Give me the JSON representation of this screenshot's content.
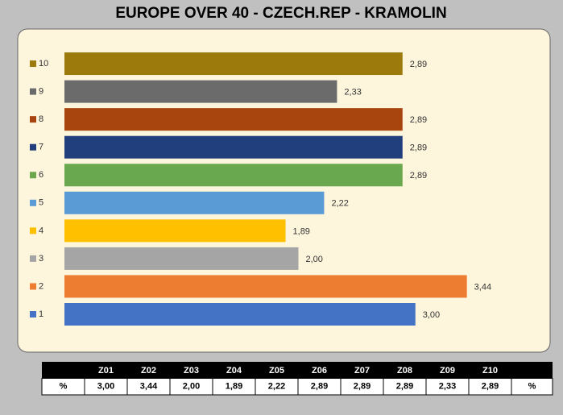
{
  "chart_data": {
    "type": "barh",
    "title": "EUROPE OVER 40 - CZECH.REP  - KRAMOLIN",
    "categories": [
      "1",
      "2",
      "3",
      "4",
      "5",
      "6",
      "7",
      "8",
      "9",
      "10"
    ],
    "values": [
      3.0,
      3.44,
      2.0,
      1.89,
      2.22,
      2.89,
      2.89,
      2.89,
      2.33,
      2.89
    ],
    "value_labels": [
      "3,00",
      "3,44",
      "2,00",
      "1,89",
      "2,22",
      "2,89",
      "2,89",
      "2,89",
      "2,33",
      "2,89"
    ],
    "colors": [
      "#4472c4",
      "#ed7d31",
      "#a5a5a5",
      "#ffc000",
      "#5b9bd5",
      "#6aa84f",
      "#203f7c",
      "#a8450f",
      "#6b6b6b",
      "#9c7a0c"
    ],
    "xlim": [
      0,
      4
    ]
  },
  "table": {
    "header": [
      "Z01",
      "Z02",
      "Z03",
      "Z04",
      "Z05",
      "Z06",
      "Z07",
      "Z08",
      "Z09",
      "Z10"
    ],
    "row_label": "%",
    "row_end": "%",
    "cells": [
      "3,00",
      "3,44",
      "2,00",
      "1,89",
      "2,22",
      "2,89",
      "2,89",
      "2,89",
      "2,33",
      "2,89"
    ]
  }
}
